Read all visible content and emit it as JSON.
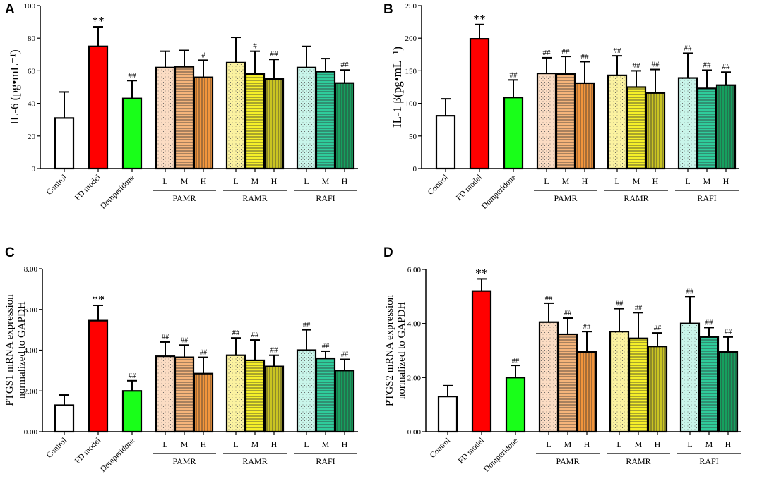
{
  "categories": [
    "Control",
    "FD model",
    "Domperidone",
    "L",
    "M",
    "H",
    "L",
    "M",
    "H",
    "L",
    "M",
    "H"
  ],
  "groups": [
    "PAMR",
    "RAMR",
    "RAFI"
  ],
  "bar_styles": [
    {
      "fill": "#ffffff",
      "pattern": "none"
    },
    {
      "fill": "#ff0000",
      "pattern": "none"
    },
    {
      "fill": "#19ff19",
      "pattern": "none"
    },
    {
      "fill": "#fbdcc3",
      "pattern": "dots"
    },
    {
      "fill": "#f5b47a",
      "pattern": "hlines"
    },
    {
      "fill": "#f2953c",
      "pattern": "vlines"
    },
    {
      "fill": "#fbf2a0",
      "pattern": "dots"
    },
    {
      "fill": "#f6ef29",
      "pattern": "hlines"
    },
    {
      "fill": "#c9c422",
      "pattern": "vlines"
    },
    {
      "fill": "#c9f5ea",
      "pattern": "dots"
    },
    {
      "fill": "#2fcc9b",
      "pattern": "hlines"
    },
    {
      "fill": "#16a05f",
      "pattern": "vlines"
    }
  ],
  "chart_data": [
    {
      "panel": "A",
      "type": "bar",
      "ylabel": "IL-6 (pg•mL⁻¹)",
      "ylim": [
        0,
        100
      ],
      "yticks": [
        "0",
        "20",
        "40",
        "60",
        "80",
        "100"
      ],
      "categories": [
        "Control",
        "FD model",
        "Domperidone",
        "PAMR L",
        "PAMR M",
        "PAMR H",
        "RAMR L",
        "RAMR M",
        "RAMR H",
        "RAFI L",
        "RAFI M",
        "RAFI H"
      ],
      "values": [
        31,
        75,
        43,
        62,
        62.5,
        56,
        65,
        58,
        55,
        62,
        59.5,
        52.5
      ],
      "errors": [
        16,
        12,
        11,
        10,
        10,
        10.5,
        15.5,
        14,
        12,
        13,
        8,
        8
      ],
      "annotations": [
        "",
        "**",
        "##",
        "",
        "",
        "#",
        "",
        "#",
        "##",
        "",
        "",
        "##"
      ]
    },
    {
      "panel": "B",
      "type": "bar",
      "ylabel": "IL-1 β(pg•mL⁻¹)",
      "ylim": [
        0,
        250
      ],
      "yticks": [
        "0",
        "50",
        "100",
        "150",
        "200",
        "250"
      ],
      "categories": [
        "Control",
        "FD model",
        "Domperidone",
        "PAMR L",
        "PAMR M",
        "PAMR H",
        "RAMR L",
        "RAMR M",
        "RAMR H",
        "RAFI L",
        "RAFI M",
        "RAFI H"
      ],
      "values": [
        81,
        199,
        109,
        146,
        145,
        131,
        143,
        125,
        116,
        139,
        123,
        128
      ],
      "errors": [
        26,
        22,
        27,
        24,
        27,
        33,
        30,
        25,
        36,
        38,
        28,
        20
      ],
      "annotations": [
        "",
        "**",
        "##",
        "##",
        "##",
        "##",
        "##",
        "##",
        "##",
        "##",
        "##",
        "##"
      ]
    },
    {
      "panel": "C",
      "type": "bar",
      "ylabel_lines": [
        "PTGS1 mRNA expression",
        "normalized to GAPDH"
      ],
      "ylim": [
        0,
        8
      ],
      "yticks": [
        "0.00",
        "2.00",
        "4.00",
        "6.00",
        "8.00"
      ],
      "categories": [
        "Control",
        "FD model",
        "Domperidone",
        "PAMR L",
        "PAMR M",
        "PAMR H",
        "RAMR L",
        "RAMR M",
        "RAMR H",
        "RAFI L",
        "RAFI M",
        "RAFI H"
      ],
      "values": [
        1.3,
        5.45,
        2.0,
        3.7,
        3.65,
        2.85,
        3.75,
        3.5,
        3.2,
        4.0,
        3.6,
        3.0
      ],
      "errors": [
        0.5,
        0.75,
        0.5,
        0.7,
        0.6,
        0.8,
        0.85,
        1.0,
        0.55,
        1.0,
        0.35,
        0.55
      ],
      "annotations": [
        "",
        "**",
        "##",
        "##",
        "##",
        "##",
        "##",
        "##",
        "##",
        "##",
        "##",
        "##"
      ]
    },
    {
      "panel": "D",
      "type": "bar",
      "ylabel_lines": [
        "PTGS2 mRNA expression",
        "normalized to GAPDH"
      ],
      "ylim": [
        0,
        6
      ],
      "yticks": [
        "0.00",
        "2.00",
        "4.00",
        "6.00"
      ],
      "categories": [
        "Control",
        "FD model",
        "Domperidone",
        "PAMR L",
        "PAMR M",
        "PAMR H",
        "RAMR L",
        "RAMR M",
        "RAMR H",
        "RAFI L",
        "RAFI M",
        "RAFI H"
      ],
      "values": [
        1.3,
        5.2,
        2.0,
        4.05,
        3.6,
        2.95,
        3.7,
        3.45,
        3.15,
        4.0,
        3.5,
        2.95
      ],
      "errors": [
        0.4,
        0.45,
        0.45,
        0.7,
        0.6,
        0.75,
        0.85,
        0.95,
        0.5,
        1.0,
        0.35,
        0.55
      ],
      "annotations": [
        "",
        "**",
        "##",
        "##",
        "##",
        "##",
        "##",
        "##",
        "##",
        "##",
        "##",
        "##"
      ]
    }
  ]
}
